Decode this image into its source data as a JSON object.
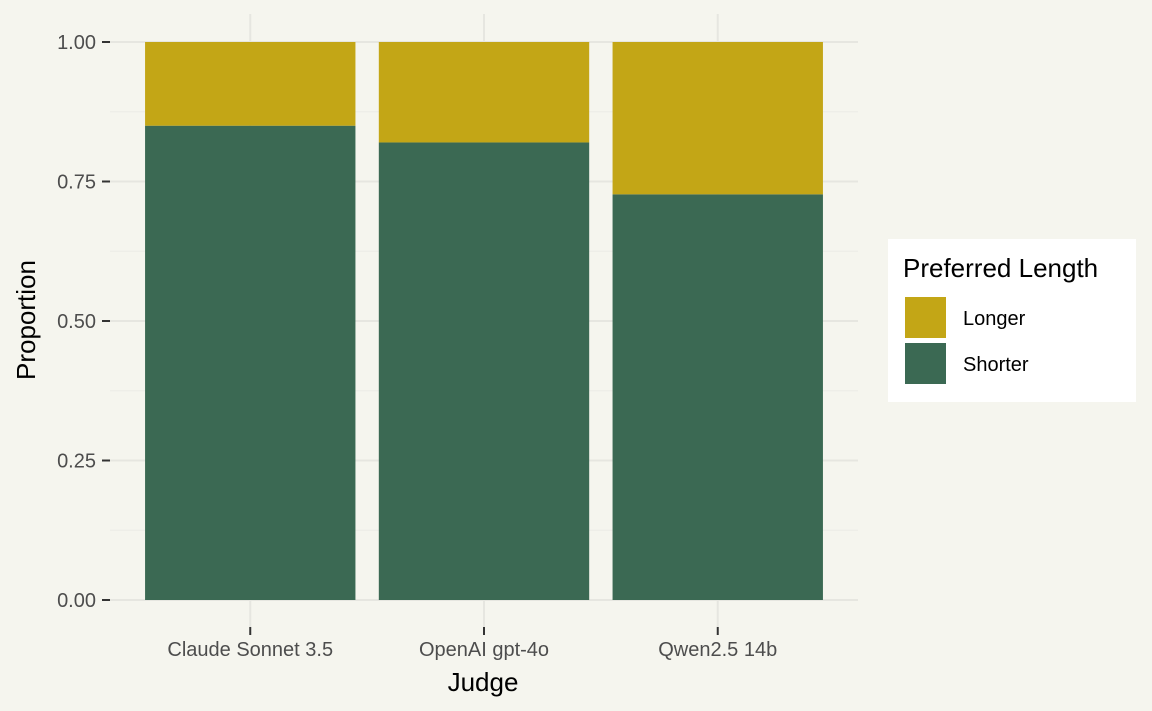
{
  "chart_data": {
    "type": "bar",
    "stacked": true,
    "normalized": true,
    "categories": [
      "Claude Sonnet 3.5",
      "OpenAI gpt-4o",
      "Qwen2.5 14b"
    ],
    "series": [
      {
        "name": "Shorter",
        "color": "#3b6953",
        "values": [
          0.85,
          0.82,
          0.727
        ]
      },
      {
        "name": "Longer",
        "color": "#c3a616",
        "values": [
          0.15,
          0.18,
          0.273
        ]
      }
    ],
    "xlabel": "Judge",
    "ylabel": "Proportion",
    "ylim": [
      0,
      1
    ],
    "yticks": [
      "0.00",
      "0.25",
      "0.50",
      "0.75",
      "1.00"
    ],
    "grid": true,
    "background": "#f5f5ee",
    "legend": {
      "title": "Preferred Length",
      "position": "right",
      "items": [
        {
          "label": "Longer",
          "color": "#c3a616"
        },
        {
          "label": "Shorter",
          "color": "#3b6953"
        }
      ]
    }
  }
}
